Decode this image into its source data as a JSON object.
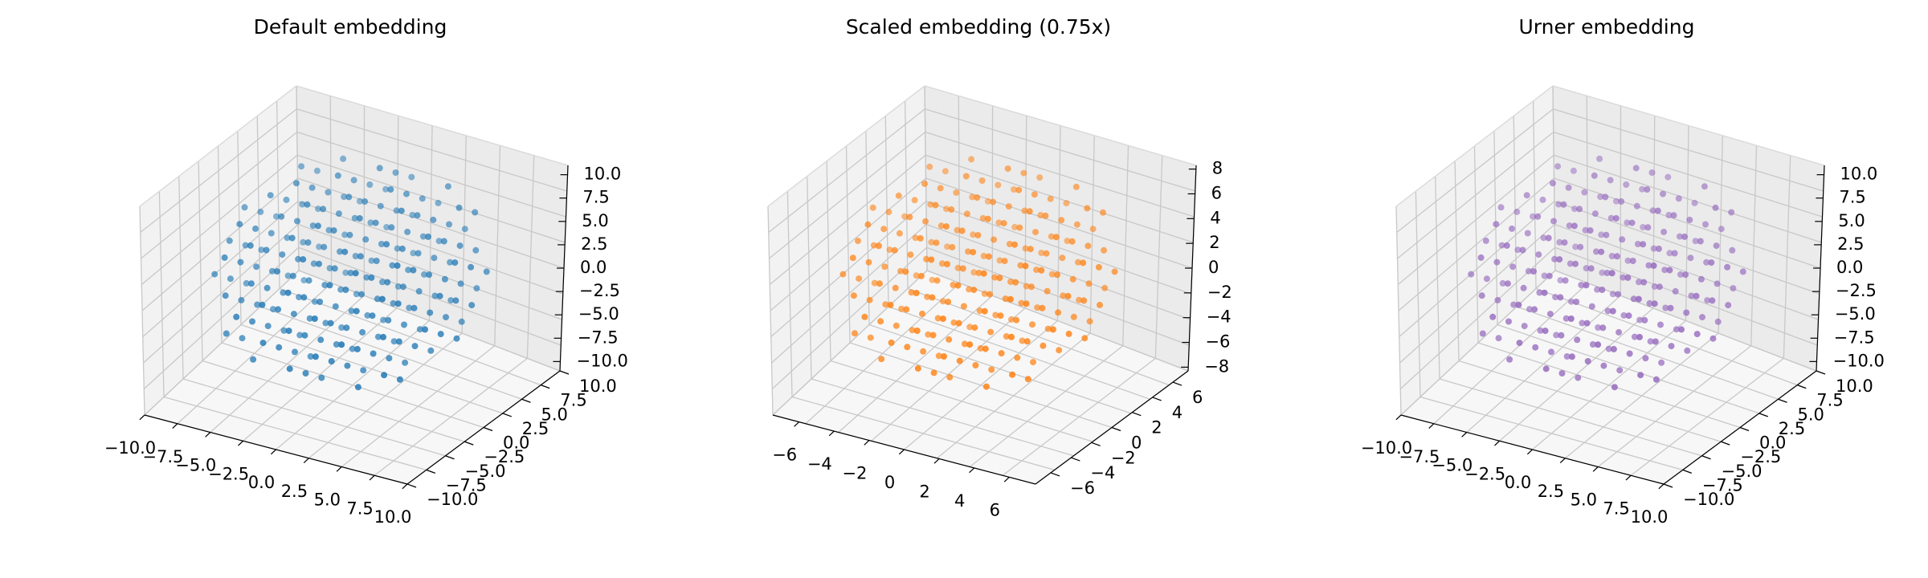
{
  "figure": {
    "panel_titles": [
      "Default embedding",
      "Scaled embedding (0.75x)",
      "Urner embedding"
    ]
  },
  "chart_data": [
    {
      "type": "scatter",
      "projection": "3d",
      "title": "Default embedding",
      "color": "#1f77b4",
      "xlim": [
        -10,
        10
      ],
      "ylim": [
        -10,
        10
      ],
      "zlim": [
        -11,
        11
      ],
      "x_ticks": [
        "−10.0",
        "−7.5",
        "−5.0",
        "−2.5",
        "0.0",
        "2.5",
        "5.0",
        "7.5",
        "10.0"
      ],
      "y_ticks": [
        "−10.0",
        "−7.5",
        "−5.0",
        "−2.5",
        "0.0",
        "2.5",
        "5.0",
        "7.5",
        "10.0"
      ],
      "z_ticks": [
        "−10.0",
        "−7.5",
        "−5.0",
        "−2.5",
        "0.0",
        "2.5",
        "5.0",
        "7.5",
        "10.0"
      ],
      "grid": true,
      "point_cloud": "fcc lattice inside sphere of radius ~10",
      "lattice_spacing": 2.83,
      "cloud_radius": 9.6
    },
    {
      "type": "scatter",
      "projection": "3d",
      "title": "Scaled embedding (0.75x)",
      "color": "#ff7f0e",
      "xlim": [
        -7.5,
        7.5
      ],
      "ylim": [
        -7.5,
        7.5
      ],
      "zlim": [
        -8.3,
        8.3
      ],
      "x_ticks": [
        "−6",
        "−4",
        "−2",
        "0",
        "2",
        "4",
        "6"
      ],
      "y_ticks": [
        "−6",
        "−4",
        "−2",
        "0",
        "2",
        "4",
        "6"
      ],
      "z_ticks": [
        "−8",
        "−6",
        "−4",
        "−2",
        "0",
        "2",
        "4",
        "6",
        "8"
      ],
      "grid": true,
      "point_cloud": "fcc lattice inside sphere of radius ~7.5",
      "lattice_spacing": 2.12,
      "cloud_radius": 7.2
    },
    {
      "type": "scatter",
      "projection": "3d",
      "title": "Urner embedding",
      "color": "#9467bd",
      "xlim": [
        -10,
        10
      ],
      "ylim": [
        -10,
        10
      ],
      "zlim": [
        -11,
        11
      ],
      "x_ticks": [
        "−10.0",
        "−7.5",
        "−5.0",
        "−2.5",
        "0.0",
        "2.5",
        "5.0",
        "7.5",
        "10.0"
      ],
      "y_ticks": [
        "−10.0",
        "−7.5",
        "−5.0",
        "−2.5",
        "0.0",
        "2.5",
        "5.0",
        "7.5",
        "10.0"
      ],
      "z_ticks": [
        "−10.0",
        "−7.5",
        "−5.0",
        "−2.5",
        "0.0",
        "2.5",
        "5.0",
        "7.5",
        "10.0"
      ],
      "grid": true,
      "point_cloud": "fcc lattice inside sphere of radius ~10",
      "lattice_spacing": 2.83,
      "cloud_radius": 9.6
    }
  ]
}
